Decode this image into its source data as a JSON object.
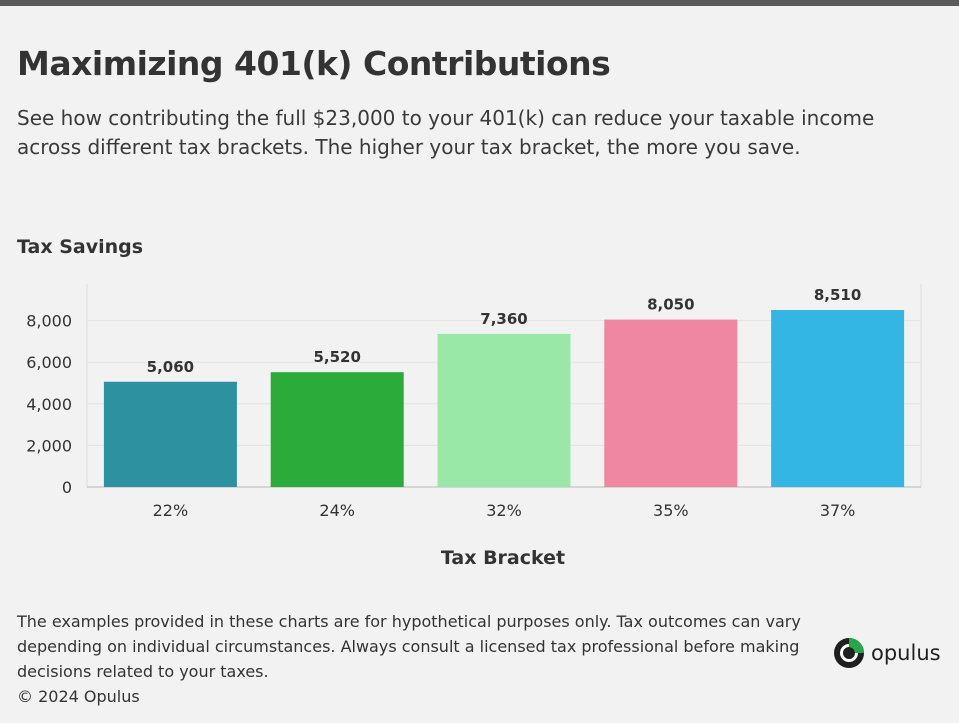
{
  "header": {
    "title": "Maximizing 401(k) Contributions",
    "subtitle": "See how contributing the full $23,000 to your 401(k) can reduce your taxable income across different tax brackets. The higher your tax bracket, the more you save."
  },
  "chart_data": {
    "type": "bar",
    "title": "Tax Savings",
    "xlabel": "Tax Bracket",
    "ylabel": "Tax Savings",
    "categories": [
      "22%",
      "24%",
      "32%",
      "35%",
      "37%"
    ],
    "values": [
      5060,
      5520,
      7360,
      8050,
      8510
    ],
    "value_labels": [
      "5,060",
      "5,520",
      "7,360",
      "8,050",
      "8,510"
    ],
    "colors": [
      "#2e91a0",
      "#2aab3a",
      "#9ae8a8",
      "#ef87a0",
      "#34b6e4"
    ],
    "yticks": [
      0,
      2000,
      4000,
      6000,
      8000
    ],
    "ytick_labels": [
      "0",
      "2,000",
      "4,000",
      "6,000",
      "8,000"
    ],
    "ylim": [
      0,
      9500
    ],
    "grid": true
  },
  "footer": {
    "disclaimer": "The examples provided in these charts are for hypothetical purposes only. Tax outcomes can vary depending on individual circumstances. Always consult a licensed tax professional before making decisions related to your taxes.",
    "copyright": "© 2024 Opulus"
  },
  "brand": {
    "logo_text": "opulus",
    "logo_icon": "opulus-logo-icon",
    "accent": "#22a846",
    "dark": "#1f1f1f"
  }
}
